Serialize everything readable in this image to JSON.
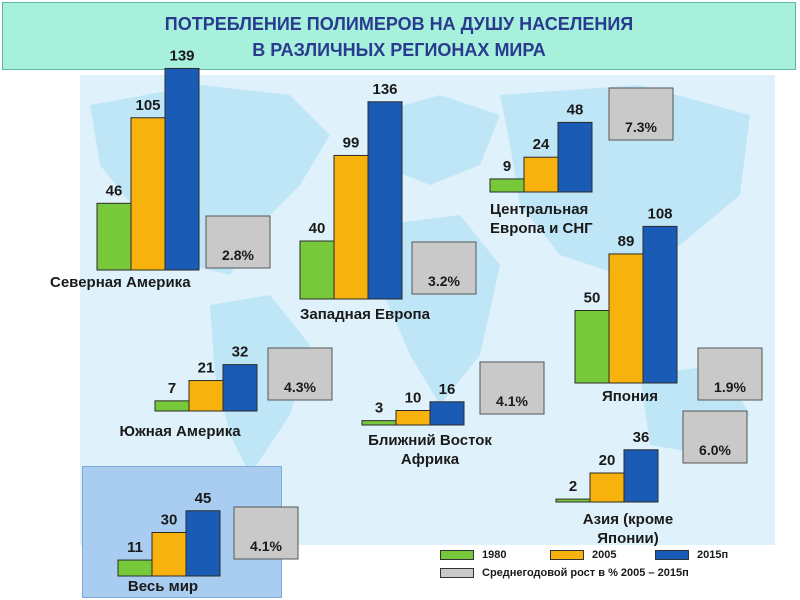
{
  "title": {
    "line1": "ПОТРЕБЛЕНИЕ ПОЛИМЕРОВ НА ДУШУ НАСЕЛЕНИЯ",
    "line2": "В РАЗЛИЧНЫХ РЕГИОНАХ МИРА"
  },
  "colors": {
    "s1980": "#77c83a",
    "s2005": "#f7b20e",
    "s2015": "#1a5cb5",
    "growth": "#c9c9c9"
  },
  "legend": {
    "item1980": "1980",
    "item2005": "2005",
    "item2015": "2015п",
    "itemGrowth": "Среднегодовой рост в % 2005 – 2015п"
  },
  "chart_data": {
    "type": "bar",
    "series": [
      {
        "name": "1980"
      },
      {
        "name": "2005"
      },
      {
        "name": "2015п"
      }
    ],
    "growth_series_name": "Среднегодовой рост в % 2005 – 2015п",
    "regions": [
      {
        "label": "Северная Америка",
        "values": [
          46,
          105,
          139
        ],
        "growth": "2.8%"
      },
      {
        "label": "Западная Европа",
        "values": [
          40,
          99,
          136
        ],
        "growth": "3.2%"
      },
      {
        "label": "Центральная Европа и СНГ",
        "label_lines": [
          "Центральная",
          "Европа и СНГ"
        ],
        "values": [
          9,
          24,
          48
        ],
        "growth": "7.3%"
      },
      {
        "label": "Япония",
        "values": [
          50,
          89,
          108
        ],
        "growth": "1.9%"
      },
      {
        "label": "Южная Америка",
        "values": [
          7,
          21,
          32
        ],
        "growth": "4.3%"
      },
      {
        "label": "Ближний Восток Африка",
        "label_lines": [
          "Ближний Восток",
          "Африка"
        ],
        "values": [
          3,
          10,
          16
        ],
        "growth": "4.1%"
      },
      {
        "label": "Азия (кроме Японии)",
        "label_lines": [
          "Азия (кроме",
          "Японии)"
        ],
        "values": [
          2,
          20,
          36
        ],
        "growth": "6.0%"
      },
      {
        "label": "Весь мир",
        "values": [
          11,
          30,
          45
        ],
        "growth": "4.1%"
      }
    ]
  }
}
